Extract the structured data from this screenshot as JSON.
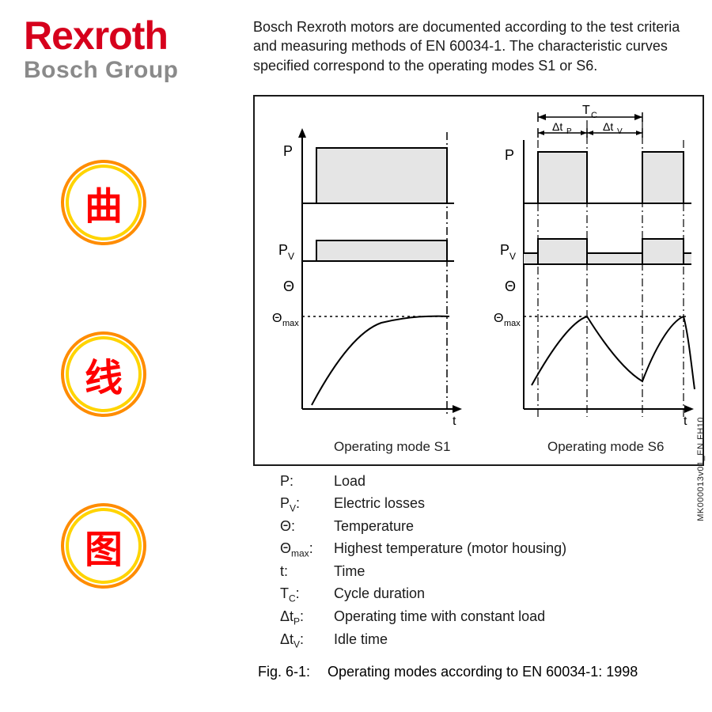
{
  "logo": {
    "brand": "Rexroth",
    "brand_color": "#d6001c",
    "sub": "Bosch Group",
    "sub_color": "#8a8a8a"
  },
  "intro": {
    "text": "Bosch Rexroth motors are documented according to the test criteria and measuring methods of EN 60034-1. The characteristic curves specified correspond to the operating modes S1 or S6.",
    "color": "#1a1a1a"
  },
  "circles": {
    "ring_outer": "#ff8c00",
    "ring_inner": "#ffd400",
    "label_color": "#ff0000",
    "items": [
      "曲",
      "线",
      "图"
    ]
  },
  "diagram": {
    "box_border": "#1a1a1a",
    "fill_gray": "#e5e5e5",
    "stroke": "#000000",
    "bg": "#ffffff",
    "side_code": "MK000013v01_EN.FH10",
    "s1": {
      "caption": "Operating mode S1",
      "labels": {
        "P": "P",
        "Pv": "P",
        "Pv_sub": "V",
        "theta": "Θ",
        "theta_max": "Θ",
        "theta_max_sub": "max",
        "t": "t"
      }
    },
    "s6": {
      "caption": "Operating mode S6",
      "labels": {
        "P": "P",
        "Pv": "P",
        "Pv_sub": "V",
        "theta": "Θ",
        "theta_max": "Θ",
        "theta_max_sub": "max",
        "t": "t",
        "Tc": "T",
        "Tc_sub": "C",
        "dtp": "Δt",
        "dtp_sub": "P",
        "dtv": "Δt",
        "dtv_sub": "V"
      }
    }
  },
  "legend": {
    "color": "#1a1a1a",
    "rows": [
      {
        "sym": "P:",
        "desc": "Load"
      },
      {
        "sym": "P",
        "sub": "V",
        "tail": ":",
        "desc": "Electric losses"
      },
      {
        "sym": "Θ:",
        "desc": "Temperature"
      },
      {
        "sym": "Θ",
        "sub": "max",
        "tail": ":",
        "desc": "Highest temperature (motor housing)"
      },
      {
        "sym": "t:",
        "desc": "Time"
      },
      {
        "sym": "T",
        "sub": "C",
        "tail": ":",
        "desc": "Cycle duration"
      },
      {
        "sym": "Δt",
        "sub": "P",
        "tail": ":",
        "desc": "Operating time with constant load"
      },
      {
        "sym": "Δt",
        "sub": "V",
        "tail": ":",
        "desc": "Idle time"
      }
    ]
  },
  "figcap": {
    "num": "Fig. 6-1:",
    "text": "Operating modes according to EN 60034-1: 1998"
  }
}
